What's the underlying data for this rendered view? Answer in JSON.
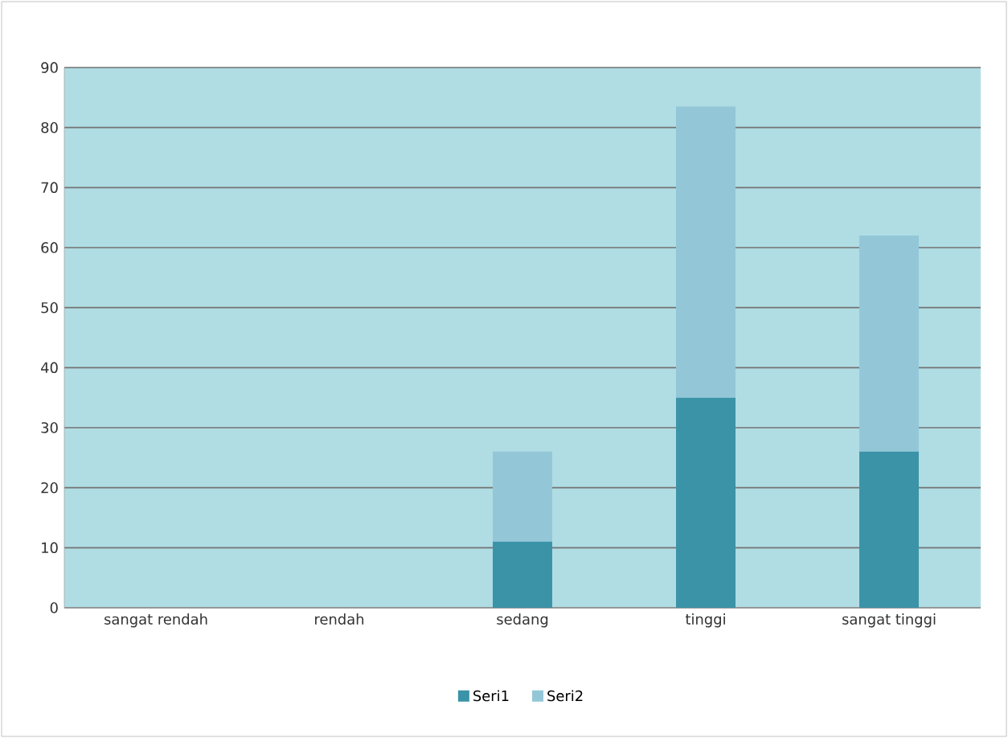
{
  "chart_data": {
    "type": "bar",
    "stacked": true,
    "categories": [
      "sangat rendah",
      "rendah",
      "sedang",
      "tinggi",
      "sangat tinggi"
    ],
    "series": [
      {
        "name": "Seri1",
        "color": "#3b93a8",
        "values": [
          0,
          0,
          11,
          35,
          26
        ]
      },
      {
        "name": "Seri2",
        "color": "#93c7d8",
        "values": [
          0,
          0,
          15,
          48.5,
          36
        ]
      }
    ],
    "ylim": [
      0,
      90
    ],
    "yticks": [
      0,
      10,
      20,
      30,
      40,
      50,
      60,
      70,
      80,
      90
    ],
    "grid": "y",
    "legend": "bottom"
  }
}
